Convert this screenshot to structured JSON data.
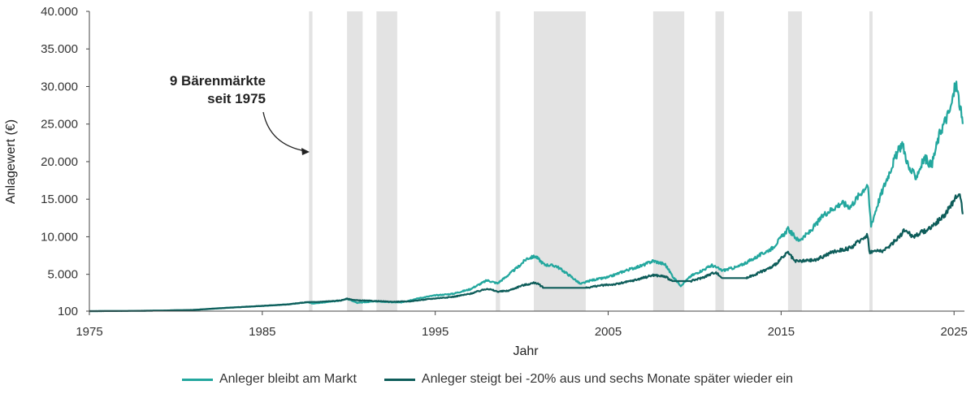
{
  "chart_data": {
    "type": "line",
    "title": "",
    "xlabel": "Jahr",
    "ylabel": "Anlagewert (€)",
    "xlim": [
      1975,
      2025.6
    ],
    "ylim": [
      100,
      40000
    ],
    "x_ticks": [
      1975,
      1985,
      1995,
      2005,
      2015,
      2025
    ],
    "y_ticks": [
      {
        "value": 100,
        "label": "100"
      },
      {
        "value": 5000,
        "label": "5.000"
      },
      {
        "value": 10000,
        "label": "10.000"
      },
      {
        "value": 15000,
        "label": "15.000"
      },
      {
        "value": 20000,
        "label": "20.000"
      },
      {
        "value": 25000,
        "label": "25.000"
      },
      {
        "value": 30000,
        "label": "30.000"
      },
      {
        "value": 35000,
        "label": "35.000"
      },
      {
        "value": 40000,
        "label": "40.000"
      }
    ],
    "annotation": {
      "line1": "9 Bärenmärkte",
      "line2": "seit 1975"
    },
    "bear_markets": [
      [
        1987.7,
        1987.9
      ],
      [
        1989.9,
        1990.8
      ],
      [
        1991.6,
        1992.8
      ],
      [
        1998.5,
        1998.75
      ],
      [
        2000.7,
        2003.7
      ],
      [
        2007.6,
        2009.4
      ],
      [
        2011.2,
        2011.7
      ],
      [
        2015.4,
        2016.2
      ],
      [
        2020.1,
        2020.25
      ]
    ],
    "series": [
      {
        "name": "Anleger bleibt am Markt",
        "color": "#23a79e",
        "points": [
          [
            1975.0,
            100
          ],
          [
            1977.0,
            120
          ],
          [
            1979.0,
            170
          ],
          [
            1981.0,
            260
          ],
          [
            1983.0,
            550
          ],
          [
            1985.0,
            800
          ],
          [
            1986.5,
            1000
          ],
          [
            1987.6,
            1300
          ],
          [
            1987.9,
            1100
          ],
          [
            1989.5,
            1500
          ],
          [
            1989.9,
            1750
          ],
          [
            1990.5,
            1200
          ],
          [
            1991.5,
            1400
          ],
          [
            1992.3,
            1300
          ],
          [
            1993.0,
            1250
          ],
          [
            1994.0,
            1800
          ],
          [
            1995.0,
            2200
          ],
          [
            1996.0,
            2400
          ],
          [
            1997.0,
            3000
          ],
          [
            1998.0,
            4200
          ],
          [
            1998.6,
            3800
          ],
          [
            1999.0,
            4500
          ],
          [
            1999.8,
            6000
          ],
          [
            2000.3,
            7100
          ],
          [
            2000.8,
            7400
          ],
          [
            2001.3,
            6300
          ],
          [
            2002.0,
            6100
          ],
          [
            2002.8,
            4800
          ],
          [
            2003.4,
            3700
          ],
          [
            2004.0,
            4200
          ],
          [
            2005.0,
            4600
          ],
          [
            2006.0,
            5500
          ],
          [
            2007.0,
            6200
          ],
          [
            2007.6,
            6800
          ],
          [
            2008.3,
            6300
          ],
          [
            2008.8,
            4500
          ],
          [
            2009.2,
            3500
          ],
          [
            2009.8,
            4800
          ],
          [
            2010.5,
            5600
          ],
          [
            2011.0,
            6200
          ],
          [
            2011.6,
            5500
          ],
          [
            2012.5,
            6000
          ],
          [
            2013.5,
            7200
          ],
          [
            2014.5,
            8500
          ],
          [
            2015.4,
            11000
          ],
          [
            2016.0,
            9500
          ],
          [
            2016.6,
            10500
          ],
          [
            2017.5,
            13000
          ],
          [
            2018.5,
            14500
          ],
          [
            2019.0,
            14000
          ],
          [
            2020.0,
            17000
          ],
          [
            2020.2,
            11500
          ],
          [
            2020.6,
            14500
          ],
          [
            2021.0,
            17000
          ],
          [
            2021.5,
            20000
          ],
          [
            2022.0,
            22500
          ],
          [
            2022.4,
            19000
          ],
          [
            2022.8,
            18000
          ],
          [
            2023.3,
            20500
          ],
          [
            2023.7,
            19500
          ],
          [
            2024.2,
            24000
          ],
          [
            2024.8,
            27000
          ],
          [
            2025.1,
            30500
          ],
          [
            2025.3,
            28000
          ],
          [
            2025.5,
            25000
          ]
        ]
      },
      {
        "name": "Anleger steigt bei -20% aus und sechs Monate später wieder ein",
        "color": "#0e5d5a",
        "points": [
          [
            1975.0,
            100
          ],
          [
            1977.0,
            120
          ],
          [
            1979.0,
            170
          ],
          [
            1981.0,
            260
          ],
          [
            1983.0,
            550
          ],
          [
            1985.0,
            800
          ],
          [
            1986.5,
            1000
          ],
          [
            1987.6,
            1300
          ],
          [
            1988.0,
            1300
          ],
          [
            1989.5,
            1500
          ],
          [
            1989.9,
            1750
          ],
          [
            1990.4,
            1550
          ],
          [
            1991.5,
            1450
          ],
          [
            1992.5,
            1350
          ],
          [
            1993.5,
            1400
          ],
          [
            1995.0,
            1800
          ],
          [
            1996.0,
            2000
          ],
          [
            1997.0,
            2400
          ],
          [
            1998.0,
            3100
          ],
          [
            1998.6,
            2700
          ],
          [
            1999.2,
            2800
          ],
          [
            2000.0,
            3500
          ],
          [
            2000.8,
            3900
          ],
          [
            2001.3,
            3200
          ],
          [
            2003.7,
            3200
          ],
          [
            2004.5,
            3500
          ],
          [
            2005.5,
            3700
          ],
          [
            2006.5,
            4200
          ],
          [
            2007.6,
            4900
          ],
          [
            2008.3,
            4700
          ],
          [
            2008.7,
            4100
          ],
          [
            2009.8,
            4100
          ],
          [
            2010.5,
            4600
          ],
          [
            2011.2,
            5300
          ],
          [
            2011.6,
            4500
          ],
          [
            2013.0,
            4500
          ],
          [
            2014.5,
            6000
          ],
          [
            2015.4,
            7900
          ],
          [
            2015.8,
            6700
          ],
          [
            2017.0,
            6900
          ],
          [
            2018.0,
            8000
          ],
          [
            2019.0,
            8500
          ],
          [
            2020.0,
            10300
          ],
          [
            2020.1,
            8000
          ],
          [
            2021.0,
            8200
          ],
          [
            2021.6,
            9500
          ],
          [
            2022.2,
            11000
          ],
          [
            2022.6,
            10000
          ],
          [
            2023.5,
            11000
          ],
          [
            2024.3,
            12500
          ],
          [
            2024.8,
            14000
          ],
          [
            2025.2,
            15800
          ],
          [
            2025.4,
            15000
          ],
          [
            2025.5,
            13000
          ]
        ]
      }
    ],
    "legend_position": "bottom-center"
  }
}
